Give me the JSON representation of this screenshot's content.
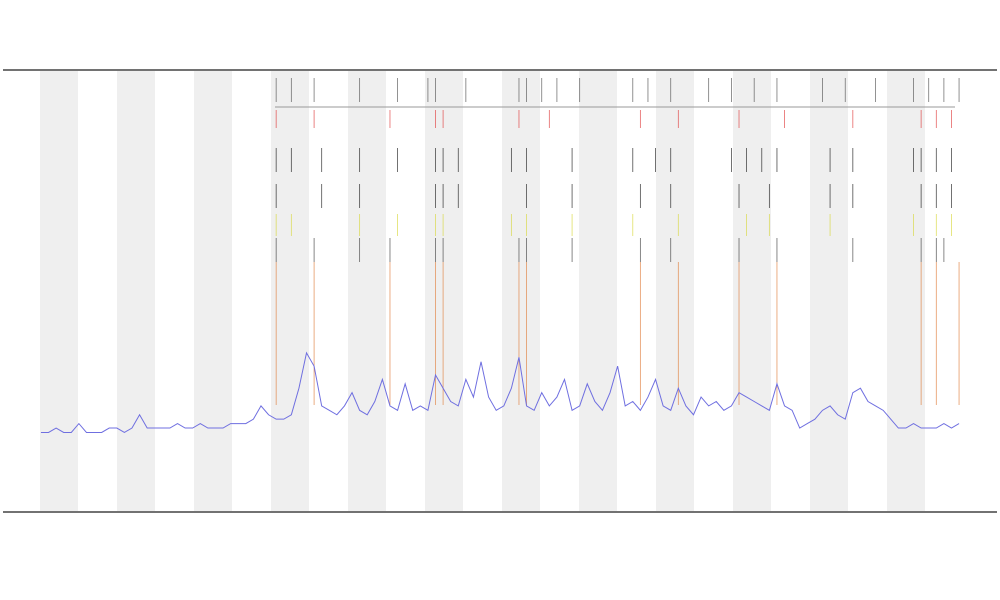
{
  "chart_data": {
    "type": "line",
    "xlim": [
      -5,
      126
    ],
    "ylim": [
      0,
      100
    ],
    "series": [
      {
        "color": "#6f6fe0",
        "values": [
          18,
          18,
          19,
          18,
          18,
          20,
          18,
          18,
          18,
          19,
          19,
          18,
          19,
          22,
          19,
          19,
          19,
          19,
          20,
          19,
          19,
          20,
          19,
          19,
          19,
          20,
          20,
          20,
          21,
          24,
          22,
          21,
          21,
          22,
          28,
          36,
          33,
          24,
          23,
          22,
          24,
          27,
          23,
          22,
          25,
          30,
          24,
          23,
          29,
          23,
          24,
          23,
          31,
          28,
          25,
          24,
          30,
          26,
          34,
          26,
          23,
          24,
          28,
          35,
          24,
          23,
          27,
          24,
          26,
          30,
          23,
          24,
          29,
          25,
          23,
          27,
          33,
          24,
          25,
          23,
          26,
          30,
          24,
          23,
          28,
          24,
          22,
          26,
          24,
          25,
          23,
          24,
          27,
          26,
          25,
          24,
          23,
          29,
          24,
          23,
          19,
          20,
          21,
          23,
          24,
          22,
          21,
          27,
          28,
          25,
          24,
          23,
          21,
          19,
          19,
          20,
          19,
          19,
          19,
          20,
          19,
          20
        ]
      }
    ],
    "event_tracks": [
      {
        "color": "#555555",
        "x": [
          31,
          33,
          36,
          42,
          47,
          51,
          52,
          56,
          63,
          64,
          66,
          68,
          71,
          78,
          80,
          83,
          88,
          91,
          94,
          97,
          103,
          106,
          110,
          115,
          117,
          119,
          121
        ]
      },
      {
        "color": "#e04040",
        "x": [
          31,
          36,
          46,
          52,
          53,
          63,
          67,
          79,
          84,
          92,
          98,
          107,
          116,
          118,
          120
        ]
      },
      {
        "color": "#222222",
        "x": [
          31,
          33,
          37,
          42,
          47,
          52,
          53,
          55,
          62,
          64,
          70,
          78,
          81,
          83,
          91,
          93,
          95,
          97,
          104,
          107,
          115,
          116,
          118,
          120
        ]
      },
      {
        "color": "#222222",
        "x": [
          31,
          37,
          42,
          52,
          53,
          55,
          64,
          70,
          79,
          83,
          92,
          96,
          104,
          107,
          116,
          118,
          120
        ]
      },
      {
        "color": "#d8d840",
        "x": [
          31,
          33,
          42,
          47,
          52,
          53,
          62,
          64,
          70,
          78,
          84,
          93,
          96,
          104,
          115,
          118,
          120
        ]
      },
      {
        "color": "#444444",
        "x": [
          31,
          36,
          42,
          46,
          52,
          53,
          63,
          64,
          70,
          79,
          83,
          92,
          97,
          107,
          116,
          118,
          119
        ]
      },
      {
        "color": "#e08040",
        "x": [
          31,
          36,
          46,
          52,
          53,
          63,
          64,
          79,
          84,
          92,
          97,
          116,
          118,
          121
        ]
      }
    ]
  }
}
